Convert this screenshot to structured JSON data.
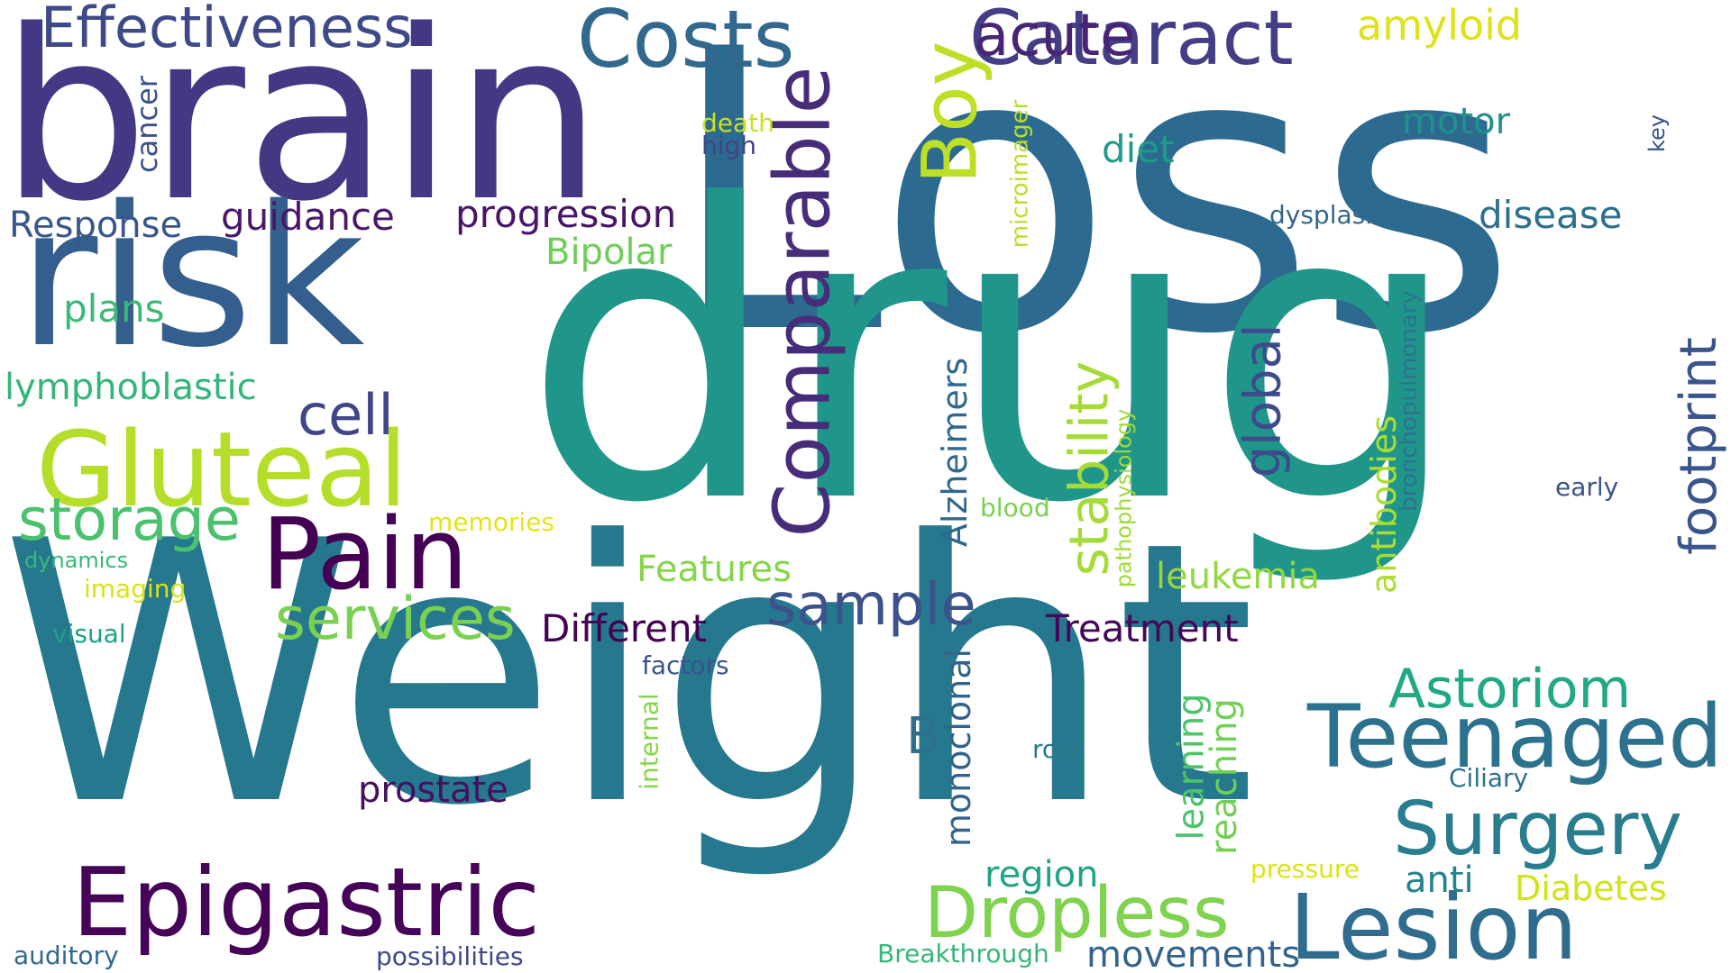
{
  "colors": {
    "background": "#ffffff",
    "palette": [
      "#440154",
      "#482878",
      "#3e4989",
      "#31688e",
      "#26828e",
      "#1f9e89",
      "#35b779",
      "#6ece58",
      "#b5de2b",
      "#fde725"
    ]
  },
  "words": [
    {
      "text": "Loss",
      "color": "#2d6a8f",
      "vertical": false
    },
    {
      "text": "drug",
      "color": "#20968b",
      "vertical": false
    },
    {
      "text": "Weight",
      "color": "#26788e",
      "vertical": false
    },
    {
      "text": "brain",
      "color": "#433884",
      "vertical": false
    },
    {
      "text": "risk",
      "color": "#345e8d",
      "vertical": false
    },
    {
      "text": "Effectiveness",
      "color": "#3e4989",
      "vertical": false
    },
    {
      "text": "Costs",
      "color": "#31688e",
      "vertical": false
    },
    {
      "text": "Cataract",
      "color": "#433e85",
      "vertical": false
    },
    {
      "text": "acute",
      "color": "#482475",
      "vertical": false
    },
    {
      "text": "amyloid",
      "color": "#dde318",
      "vertical": false
    },
    {
      "text": "Comparable",
      "color": "#472c7a",
      "vertical": true
    },
    {
      "text": "Boy",
      "color": "#bddf26",
      "vertical": true
    },
    {
      "text": "Gluteal",
      "color": "#b5de2b",
      "vertical": false
    },
    {
      "text": "Pain",
      "color": "#440154",
      "vertical": false
    },
    {
      "text": "Epigastric",
      "color": "#450457",
      "vertical": false
    },
    {
      "text": "Teenaged",
      "color": "#2c728e",
      "vertical": false
    },
    {
      "text": "Surgery",
      "color": "#287d8e",
      "vertical": false
    },
    {
      "text": "Lesion",
      "color": "#2f6c8e",
      "vertical": false
    },
    {
      "text": "Dropless",
      "color": "#7fd34e",
      "vertical": false
    },
    {
      "text": "storage",
      "color": "#4ac16d",
      "vertical": false
    },
    {
      "text": "services",
      "color": "#7ad151",
      "vertical": false
    },
    {
      "text": "sample",
      "color": "#3b528b",
      "vertical": false
    },
    {
      "text": "cell",
      "color": "#3f4788",
      "vertical": false
    },
    {
      "text": "Astoriom",
      "color": "#22a884",
      "vertical": false
    },
    {
      "text": "stability",
      "color": "#a5db36",
      "vertical": true
    },
    {
      "text": "global",
      "color": "#3e4a89",
      "vertical": true
    },
    {
      "text": "footprint",
      "color": "#39558c",
      "vertical": true
    },
    {
      "text": "guidance",
      "color": "#481769",
      "vertical": false
    },
    {
      "text": "Response",
      "color": "#39568c",
      "vertical": false
    },
    {
      "text": "progression",
      "color": "#481467",
      "vertical": false
    },
    {
      "text": "Bipolar",
      "color": "#6ece58",
      "vertical": false
    },
    {
      "text": "plans",
      "color": "#3aba76",
      "vertical": false
    },
    {
      "text": "lymphoblastic",
      "color": "#34b679",
      "vertical": false
    },
    {
      "text": "motor",
      "color": "#21918c",
      "vertical": false
    },
    {
      "text": "diet",
      "color": "#1e9c89",
      "vertical": false
    },
    {
      "text": "disease",
      "color": "#2e6f8e",
      "vertical": false
    },
    {
      "text": "dysplasia",
      "color": "#31688e",
      "vertical": false
    },
    {
      "text": "cancer",
      "color": "#3b528b",
      "vertical": true
    },
    {
      "text": "death",
      "color": "#cae11f",
      "vertical": false
    },
    {
      "text": "high",
      "color": "#414487",
      "vertical": false
    },
    {
      "text": "microimager",
      "color": "#b8de29",
      "vertical": true
    },
    {
      "text": "key",
      "color": "#3b528b",
      "vertical": true
    },
    {
      "text": "Alzheimers",
      "color": "#31688e",
      "vertical": true
    },
    {
      "text": "pathophysiology",
      "color": "#a0da39",
      "vertical": true
    },
    {
      "text": "bronchopulmonary",
      "color": "#2c728e",
      "vertical": true
    },
    {
      "text": "antibodies",
      "color": "#addc30",
      "vertical": true
    },
    {
      "text": "leukemia",
      "color": "#93d741",
      "vertical": false
    },
    {
      "text": "Features",
      "color": "#86d549",
      "vertical": false
    },
    {
      "text": "memories",
      "color": "#e5e419",
      "vertical": false
    },
    {
      "text": "blood",
      "color": "#7ad151",
      "vertical": false
    },
    {
      "text": "early",
      "color": "#3b528b",
      "vertical": false
    },
    {
      "text": "dynamics",
      "color": "#38b977",
      "vertical": false
    },
    {
      "text": "imaging",
      "color": "#d8e219",
      "vertical": false
    },
    {
      "text": "visual",
      "color": "#1fa187",
      "vertical": false
    },
    {
      "text": "Different",
      "color": "#440154",
      "vertical": false
    },
    {
      "text": "Treatment",
      "color": "#46075a",
      "vertical": false
    },
    {
      "text": "B",
      "color": "#2e6e8e",
      "vertical": false
    },
    {
      "text": "monoclonal",
      "color": "#33638d",
      "vertical": true
    },
    {
      "text": "factors",
      "color": "#3b528b",
      "vertical": false
    },
    {
      "text": "internal",
      "color": "#86d549",
      "vertical": true
    },
    {
      "text": "role",
      "color": "#2a788e",
      "vertical": false
    },
    {
      "text": "prostate",
      "color": "#470e61",
      "vertical": false
    },
    {
      "text": "learning",
      "color": "#4ec36b",
      "vertical": true
    },
    {
      "text": "reaching",
      "color": "#73d056",
      "vertical": true
    },
    {
      "text": "Ciliary",
      "color": "#2d708e",
      "vertical": false
    },
    {
      "text": "region",
      "color": "#20a386",
      "vertical": false
    },
    {
      "text": "anti",
      "color": "#26828e",
      "vertical": false
    },
    {
      "text": "Diabetes",
      "color": "#d2e21b",
      "vertical": false
    },
    {
      "text": "pressure",
      "color": "#dde318",
      "vertical": false
    },
    {
      "text": "movements",
      "color": "#33638d",
      "vertical": false
    },
    {
      "text": "Breakthrough",
      "color": "#35b779",
      "vertical": false
    },
    {
      "text": "possibilities",
      "color": "#3e4989",
      "vertical": false
    },
    {
      "text": "auditory",
      "color": "#31688e",
      "vertical": false
    }
  ]
}
